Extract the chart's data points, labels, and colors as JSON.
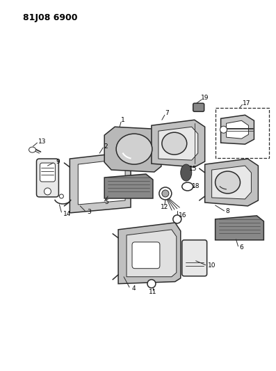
{
  "title": "81J08 6900",
  "bg_color": "#ffffff",
  "line_color": "#2a2a2a",
  "figsize": [
    3.97,
    5.33
  ],
  "dpi": 100,
  "label_fontsize": 6.5,
  "title_fontsize": 9
}
